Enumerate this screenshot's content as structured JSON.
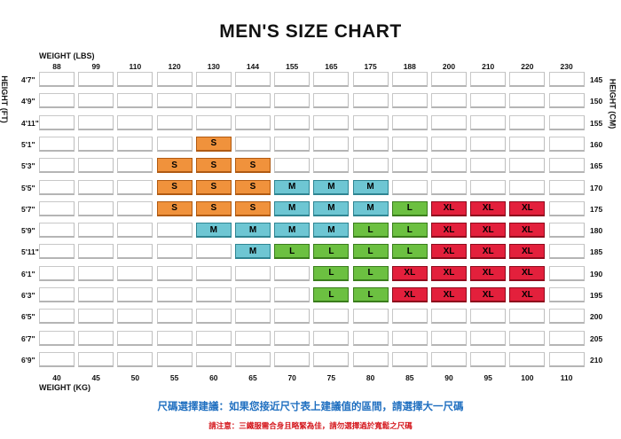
{
  "chart_data": {
    "type": "table",
    "title": "MEN'S  SIZE CHART",
    "top_axis_label": "WEIGHT (LBS)",
    "bottom_axis_label": "WEIGHT (KG)",
    "left_axis_label": "HEIGHT (FT)",
    "right_axis_label": "HEIGHT (CM)",
    "weights_lbs": [
      "88",
      "99",
      "110",
      "120",
      "130",
      "144",
      "155",
      "165",
      "175",
      "188",
      "200",
      "210",
      "220",
      "230"
    ],
    "weights_kg": [
      "40",
      "45",
      "50",
      "55",
      "60",
      "65",
      "70",
      "75",
      "80",
      "85",
      "90",
      "95",
      "100",
      "110"
    ],
    "heights_ft": [
      "4'7\"",
      "4'9\"",
      "4'11\"",
      "5'1\"",
      "5'3\"",
      "5'5\"",
      "5'7\"",
      "5'9\"",
      "5'11\"",
      "6'1\"",
      "6'3\"",
      "6'5\"",
      "6'7\"",
      "6'9\""
    ],
    "heights_cm": [
      "145",
      "150",
      "155",
      "160",
      "165",
      "170",
      "175",
      "180",
      "185",
      "190",
      "195",
      "200",
      "205",
      "210"
    ],
    "sizes": [
      [
        "",
        "",
        "",
        "",
        "",
        "",
        "",
        "",
        "",
        "",
        "",
        "",
        "",
        ""
      ],
      [
        "",
        "",
        "",
        "",
        "",
        "",
        "",
        "",
        "",
        "",
        "",
        "",
        "",
        ""
      ],
      [
        "",
        "",
        "",
        "",
        "",
        "",
        "",
        "",
        "",
        "",
        "",
        "",
        "",
        ""
      ],
      [
        "",
        "",
        "",
        "",
        "S",
        "",
        "",
        "",
        "",
        "",
        "",
        "",
        "",
        ""
      ],
      [
        "",
        "",
        "",
        "S",
        "S",
        "S",
        "",
        "",
        "",
        "",
        "",
        "",
        "",
        ""
      ],
      [
        "",
        "",
        "",
        "S",
        "S",
        "S",
        "M",
        "M",
        "M",
        "",
        "",
        "",
        "",
        ""
      ],
      [
        "",
        "",
        "",
        "S",
        "S",
        "S",
        "M",
        "M",
        "M",
        "L",
        "XL",
        "XL",
        "XL",
        ""
      ],
      [
        "",
        "",
        "",
        "",
        "M",
        "M",
        "M",
        "M",
        "L",
        "L",
        "XL",
        "XL",
        "XL",
        ""
      ],
      [
        "",
        "",
        "",
        "",
        "",
        "M",
        "L",
        "L",
        "L",
        "L",
        "XL",
        "XL",
        "XL",
        ""
      ],
      [
        "",
        "",
        "",
        "",
        "",
        "",
        "",
        "L",
        "L",
        "XL",
        "XL",
        "XL",
        "XL",
        ""
      ],
      [
        "",
        "",
        "",
        "",
        "",
        "",
        "",
        "L",
        "L",
        "XL",
        "XL",
        "XL",
        "XL",
        ""
      ],
      [
        "",
        "",
        "",
        "",
        "",
        "",
        "",
        "",
        "",
        "",
        "",
        "",
        "",
        ""
      ],
      [
        "",
        "",
        "",
        "",
        "",
        "",
        "",
        "",
        "",
        "",
        "",
        "",
        "",
        ""
      ],
      [
        "",
        "",
        "",
        "",
        "",
        "",
        "",
        "",
        "",
        "",
        "",
        "",
        "",
        ""
      ]
    ],
    "size_colors": {
      "S": "#f0923c",
      "M": "#6ec6d3",
      "L": "#6cc041",
      "XL": "#e3203c"
    }
  },
  "notes": {
    "advice": "尺碼選擇建議：如果您接近尺寸表上建議值的區間，請選擇大一尺碼",
    "warning": "請注意：三鐵服需合身且略緊為佳，請勿選擇過於寬鬆之尺碼"
  }
}
